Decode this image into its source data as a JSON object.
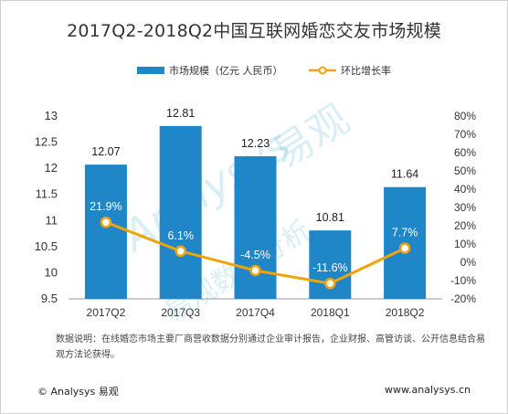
{
  "title": "2017Q2-2018Q2中国互联网婚恋交友市场规模",
  "legend": {
    "bar_label": "市场规模（亿元 人民币）",
    "line_label": "环比增长率"
  },
  "watermark": {
    "brand": "Analysys",
    "cn": "易观",
    "sub": "易观数据分析"
  },
  "colors": {
    "bar": "#1f86c8",
    "line": "#f0a30a",
    "marker_fill": "#ffffff"
  },
  "chart_data": {
    "type": "bar+line",
    "categories": [
      "2017Q2",
      "2017Q3",
      "2017Q4",
      "2018Q1",
      "2018Q2"
    ],
    "series": [
      {
        "name": "市场规模（亿元 人民币）",
        "type": "bar",
        "axis": "left",
        "values": [
          12.07,
          12.81,
          12.23,
          10.81,
          11.64
        ],
        "labels": [
          "12.07",
          "12.81",
          "12.23",
          "10.81",
          "11.64"
        ]
      },
      {
        "name": "环比增长率",
        "type": "line",
        "axis": "right",
        "values": [
          21.9,
          6.1,
          -4.5,
          -11.6,
          7.7
        ],
        "labels": [
          "21.9%",
          "6.1%",
          "-4.5%",
          "-11.6%",
          "7.7%"
        ]
      }
    ],
    "y_left": {
      "min": 9.5,
      "max": 13,
      "ticks": [
        "9.5",
        "10",
        "10.5",
        "11",
        "11.5",
        "12",
        "12.5",
        "13"
      ]
    },
    "y_right": {
      "min": -20,
      "max": 80,
      "ticks": [
        "-20%",
        "-10%",
        "0%",
        "10%",
        "20%",
        "30%",
        "40%",
        "50%",
        "60%",
        "70%",
        "80%"
      ]
    },
    "legend_position": "top",
    "grid": false
  },
  "note": "数据说明：在线婚恋市场主要厂商营收数据分别通过企业审计报告，企业财报、高管访谈、公开信息结合易观方法论获得。",
  "footer": {
    "left": "© Analysys 易观",
    "right": "www.analysys.cn"
  }
}
